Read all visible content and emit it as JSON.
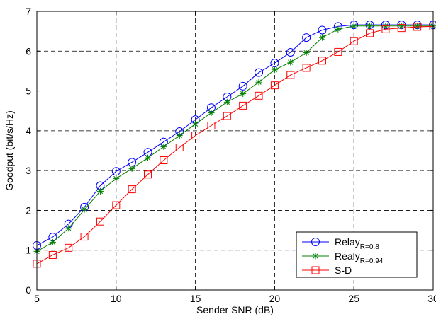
{
  "chart_data": {
    "type": "line",
    "title": "",
    "xlabel": "Sender SNR (dB)",
    "ylabel": "Goodput (bit/s/Hz)",
    "xlim": [
      5,
      30
    ],
    "ylim": [
      0,
      7
    ],
    "xticks": [
      "5",
      "10",
      "15",
      "20",
      "25",
      "30"
    ],
    "yticks": [
      "0",
      "1",
      "2",
      "3",
      "4",
      "5",
      "6",
      "7"
    ],
    "grid": true,
    "grid_style": "dashed",
    "legend_position": "bottom-right",
    "x": [
      5,
      6,
      7,
      8,
      9,
      10,
      11,
      12,
      13,
      14,
      15,
      16,
      17,
      18,
      19,
      20,
      21,
      22,
      23,
      24,
      25,
      26,
      27,
      28,
      29,
      30
    ],
    "series": [
      {
        "name": "Relay",
        "name_subscript": "R=0.8",
        "color": "#0000ff",
        "marker": "circle",
        "values": [
          1.12,
          1.33,
          1.66,
          2.08,
          2.62,
          2.98,
          3.21,
          3.46,
          3.72,
          3.98,
          4.28,
          4.58,
          4.85,
          5.12,
          5.46,
          5.7,
          5.97,
          6.34,
          6.53,
          6.62,
          6.66,
          6.66,
          6.66,
          6.66,
          6.66,
          6.66
        ]
      },
      {
        "name": "Realy",
        "name_subscript": "R=0.94",
        "color": "#008000",
        "marker": "star",
        "values": [
          0.97,
          1.2,
          1.55,
          2.02,
          2.48,
          2.8,
          3.05,
          3.32,
          3.6,
          3.88,
          4.17,
          4.45,
          4.72,
          4.93,
          5.22,
          5.53,
          5.72,
          5.96,
          6.34,
          6.55,
          6.63,
          6.63,
          6.63,
          6.63,
          6.63,
          6.63
        ]
      },
      {
        "name": "S-D",
        "name_subscript": "",
        "color": "#ff0000",
        "marker": "square",
        "values": [
          0.66,
          0.88,
          1.06,
          1.34,
          1.72,
          2.13,
          2.53,
          2.9,
          3.26,
          3.58,
          3.88,
          4.13,
          4.37,
          4.63,
          4.88,
          5.14,
          5.4,
          5.58,
          5.76,
          5.98,
          6.25,
          6.45,
          6.55,
          6.58,
          6.61,
          6.62
        ]
      }
    ]
  }
}
